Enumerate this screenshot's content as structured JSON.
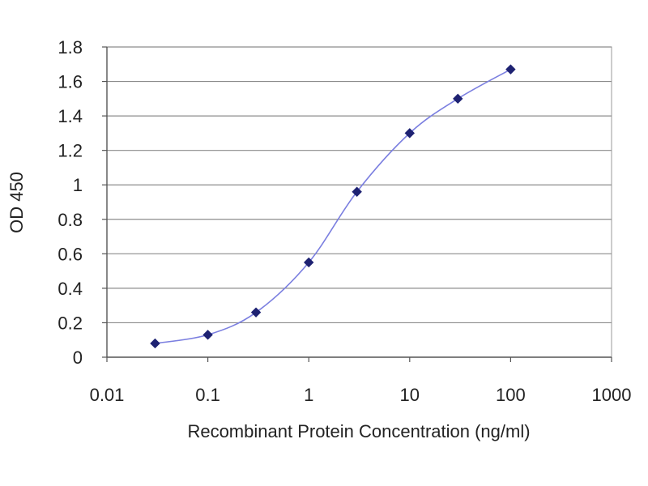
{
  "chart_data": {
    "type": "scatter",
    "title": "",
    "xlabel": "Recombinant Protein Concentration (ng/ml)",
    "ylabel": "OD 450",
    "x_scale": "log",
    "xlim": [
      0.01,
      1000
    ],
    "ylim": [
      0,
      1.8
    ],
    "x_ticks": [
      "0.01",
      "0.1",
      "1",
      "10",
      "100",
      "1000"
    ],
    "y_ticks": [
      "0",
      "0.2",
      "0.4",
      "0.6",
      "0.8",
      "1",
      "1.2",
      "1.4",
      "1.6",
      "1.8"
    ],
    "grid": "horizontal",
    "legend": "none",
    "series": [
      {
        "color": "#2b2f86",
        "x": [
          0.03,
          0.1,
          0.3,
          1,
          3,
          10,
          30,
          100
        ],
        "y": [
          0.08,
          0.13,
          0.26,
          0.55,
          0.96,
          1.3,
          1.5,
          1.67
        ]
      }
    ],
    "colors": {
      "line": "#7b7fe0",
      "marker": "#1e2272",
      "grid": "#8c8c8c",
      "plot_border": "#9a9a9a"
    }
  }
}
